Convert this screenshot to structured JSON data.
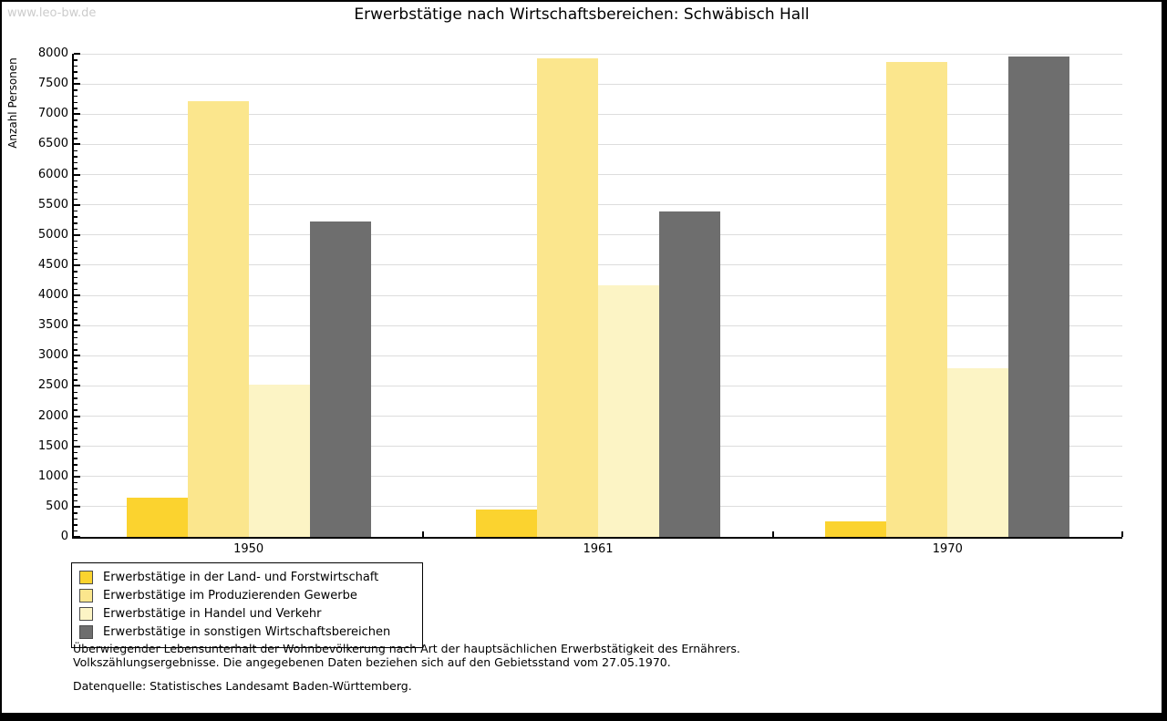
{
  "watermark": "www.leo-bw.de",
  "title": "Erwerbstätige nach Wirtschaftsbereichen: Schwäbisch Hall",
  "chart_data": {
    "type": "bar",
    "title": "Erwerbstätige nach Wirtschaftsbereichen: Schwäbisch Hall",
    "xlabel": "",
    "ylabel": "Anzahl Personen",
    "categories": [
      "1950",
      "1961",
      "1970"
    ],
    "series": [
      {
        "name": "Erwerbstätige in der Land- und Forstwirtschaft",
        "color": "#FBD32F",
        "values": [
          650,
          450,
          250
        ]
      },
      {
        "name": "Erwerbstätige im Produzierenden Gewerbe",
        "color": "#FBE68D",
        "values": [
          7210,
          7920,
          7860
        ]
      },
      {
        "name": "Erwerbstätige in Handel und Verkehr",
        "color": "#FCF4C5",
        "values": [
          2520,
          4160,
          2800
        ]
      },
      {
        "name": "Erwerbstätige in sonstigen Wirtschaftsbereichen",
        "color": "#6E6E6E",
        "values": [
          5230,
          5390,
          7950
        ]
      }
    ],
    "ylim": [
      0,
      8000
    ],
    "ytick_step": 500,
    "yminor_step": 100,
    "ytick_labels": [
      "0",
      "500",
      "1000",
      "1500",
      "2000",
      "2500",
      "3000",
      "3500",
      "4000",
      "4500",
      "5000",
      "5500",
      "6000",
      "6500",
      "7000",
      "7500",
      "8000"
    ],
    "grid": "horizontal",
    "gridline_color": "#dddddd",
    "legend_position": "bottom-left"
  },
  "footnotes": {
    "line1": "Überwiegender Lebensunterhalt der Wohnbevölkerung nach Art der hauptsächlichen Erwerbstätigkeit des Ernährers.",
    "line2": "Volkszählungsergebnisse. Die angegebenen Daten beziehen sich auf den Gebietsstand vom 27.05.1970.",
    "source": "Datenquelle: Statistisches Landesamt Baden-Württemberg."
  },
  "colors": {
    "background": "#ffffff",
    "frame_border": "#000000",
    "watermark": "#cccccc",
    "axis": "#000000",
    "gridline": "#dddddd"
  }
}
